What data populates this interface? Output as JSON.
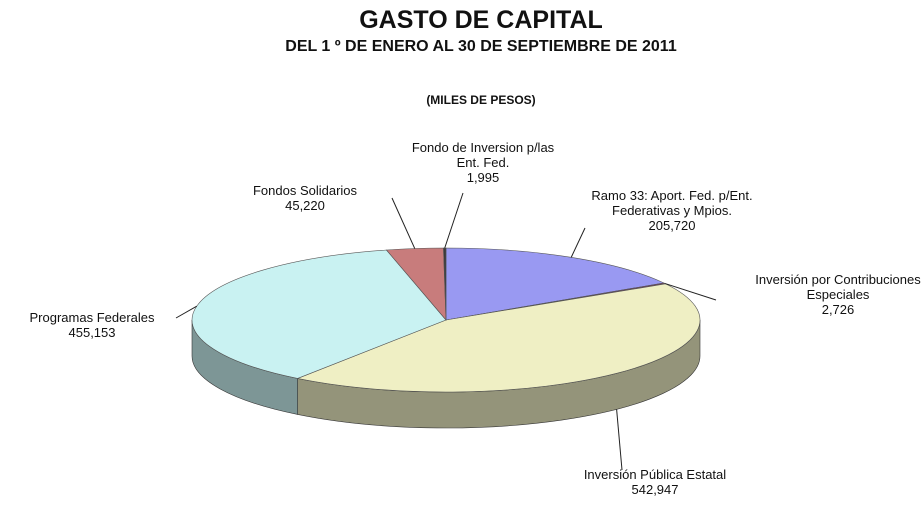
{
  "chart_data": {
    "type": "pie3d",
    "title": "GASTO DE CAPITAL",
    "subtitle": "DEL 1 º DE ENERO AL 30 DE SEPTIEMBRE DE 2011",
    "unit_label": "(MILES DE PESOS)",
    "categories": [
      "Ramo 33:  Aport. Fed. p/Ent. Federativas y Mpios.",
      "Inversión por Contribuciones Especiales",
      "Inversión Pública Estatal",
      "Programas Federales",
      "Fondos Solidarios",
      "Fondo de Inversion p/las Ent. Fed."
    ],
    "values": [
      205720,
      2726,
      542947,
      455153,
      45220,
      1995
    ],
    "value_labels": [
      "205,720",
      "2,726",
      "542,947",
      "455,153",
      "45,220",
      "1,995"
    ],
    "colors": [
      "#9999f2",
      "#7a3a66",
      "#efefc4",
      "#c9f2f2",
      "#c87c7c",
      "#3a3a3a"
    ]
  }
}
